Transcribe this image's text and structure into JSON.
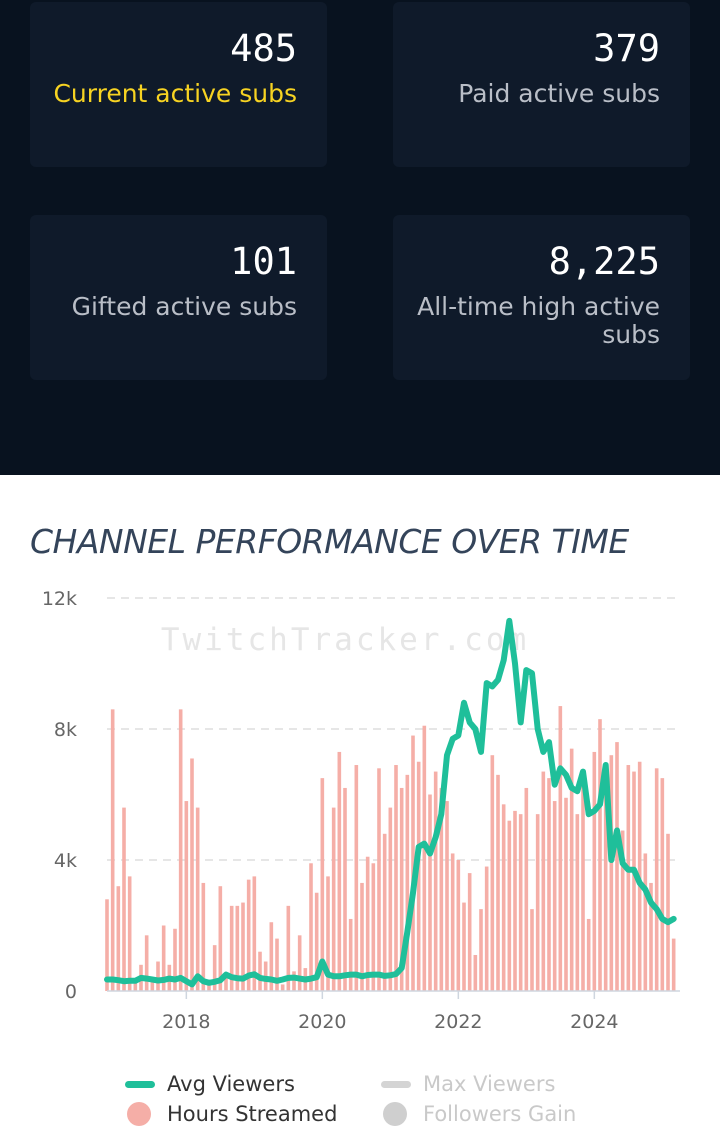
{
  "stats": [
    {
      "value": "485",
      "label": "Current active subs",
      "highlight": true
    },
    {
      "value": "379",
      "label": "Paid active subs",
      "highlight": false
    },
    {
      "value": "101",
      "label": "Gifted active subs",
      "highlight": false
    },
    {
      "value": "8,225",
      "label": "All-time high active subs",
      "highlight": false
    }
  ],
  "chart_title": "CHANNEL PERFORMANCE OVER TIME",
  "watermark": "TwitchTracker.com",
  "legend": {
    "avg_viewers": "Avg Viewers",
    "max_viewers": "Max Viewers",
    "hours_streamed": "Hours Streamed",
    "followers_gain": "Followers Gain"
  },
  "colors": {
    "avg_viewers": "#1fbf9a",
    "hours_streamed": "#f5aea7",
    "disabled": "#cfcfcf",
    "highlight": "#f7d322"
  },
  "chart_data": {
    "type": "bar",
    "title": "CHANNEL PERFORMANCE OVER TIME",
    "x_ticks": [
      "2018",
      "2020",
      "2022",
      "2024"
    ],
    "y_ticks": [
      "0",
      "4k",
      "8k",
      "12k"
    ],
    "ylim": [
      0,
      12000
    ],
    "grid": true,
    "legend_position": "bottom",
    "series": [
      {
        "name": "Hours Streamed",
        "type": "bar",
        "start": "2016-11",
        "values": [
          2800,
          8600,
          3200,
          5600,
          3500,
          300,
          800,
          1700,
          300,
          900,
          2000,
          800,
          1900,
          8600,
          5800,
          7100,
          5600,
          3300,
          300,
          1400,
          3200,
          500,
          2600,
          2600,
          2700,
          3400,
          3500,
          1200,
          900,
          2100,
          1600,
          200,
          2600,
          600,
          1700,
          700,
          3900,
          3000,
          6500,
          3500,
          5600,
          7300,
          6200,
          2200,
          6900,
          3300,
          4100,
          3900,
          6800,
          4800,
          5600,
          6900,
          6200,
          6600,
          7800,
          7000,
          8100,
          6000,
          6700,
          6200,
          5800,
          4200,
          4000,
          2700,
          3600,
          1100,
          2500,
          3800,
          7200,
          6600,
          5700,
          5200,
          5500,
          5400,
          6200,
          2500,
          5400,
          6700,
          6500,
          5800,
          8700,
          5900,
          7400,
          5400,
          6400,
          2200,
          7300,
          8300,
          6400,
          7200,
          7600,
          4900,
          6900,
          6700,
          7000,
          4200,
          3300,
          6800,
          6500,
          4800,
          1600
        ]
      },
      {
        "name": "Avg Viewers",
        "type": "line",
        "start": "2016-11",
        "values": [
          350,
          350,
          330,
          300,
          310,
          310,
          400,
          380,
          350,
          320,
          340,
          380,
          350,
          400,
          300,
          200,
          450,
          300,
          250,
          280,
          330,
          500,
          420,
          390,
          380,
          470,
          510,
          400,
          370,
          350,
          310,
          350,
          400,
          410,
          380,
          350,
          380,
          420,
          900,
          500,
          450,
          450,
          480,
          500,
          500,
          450,
          490,
          500,
          500,
          460,
          480,
          520,
          700,
          1800,
          3000,
          4400,
          4500,
          4200,
          4700,
          5400,
          7200,
          7700,
          7800,
          8800,
          8200,
          8000,
          7300,
          9400,
          9300,
          9500,
          10100,
          11300,
          10000,
          8200,
          9800,
          9700,
          8000,
          7300,
          7600,
          6300,
          6800,
          6600,
          6200,
          6100,
          6700,
          5400,
          5500,
          5700,
          6900,
          4000,
          4900,
          3900,
          3700,
          3700,
          3300,
          3100,
          2700,
          2500,
          2200,
          2100,
          2200
        ]
      },
      {
        "name": "Max Viewers",
        "type": "line",
        "visible": false
      },
      {
        "name": "Followers Gain",
        "type": "line",
        "visible": false
      }
    ]
  }
}
